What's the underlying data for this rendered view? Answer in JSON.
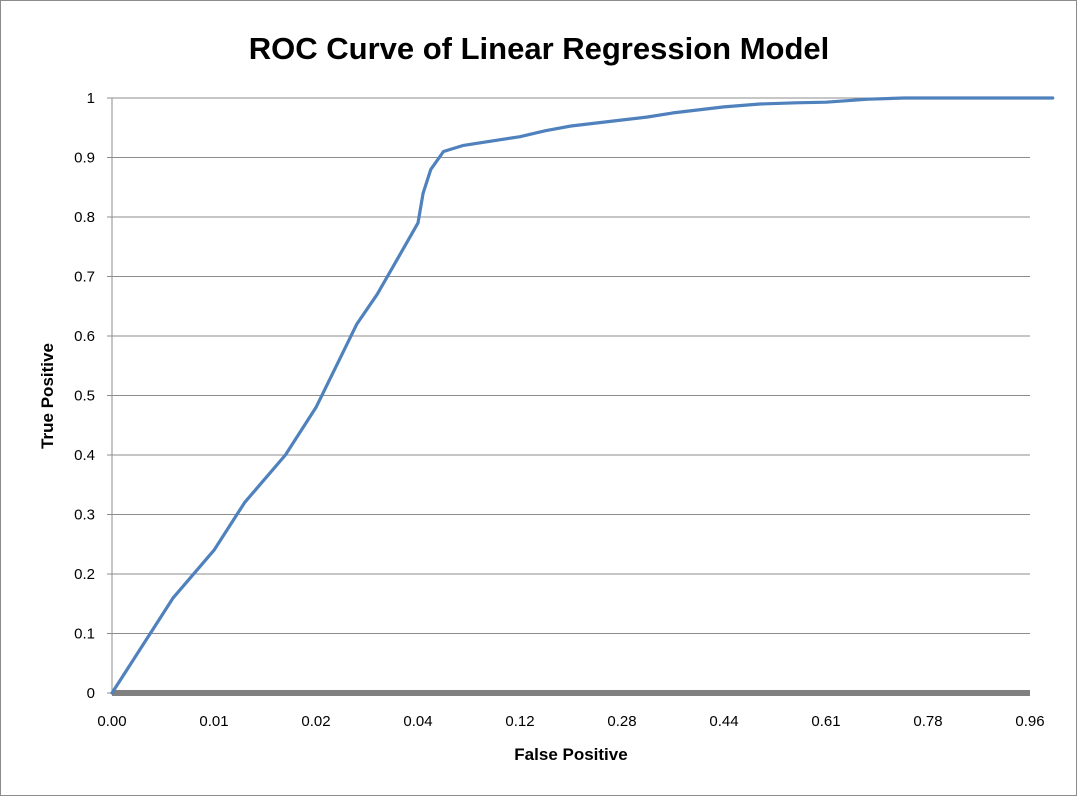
{
  "colors": {
    "line": "#4f81bd",
    "grid": "#8c8c8c",
    "baseline": "#808080",
    "axis": "#8c8c8c"
  },
  "chart_data": {
    "type": "line",
    "title": "ROC Curve of Linear Regression Model",
    "xlabel": "False Positive",
    "ylabel": "True Positive",
    "x_tick_labels": [
      "0.00",
      "0.01",
      "0.02",
      "0.04",
      "0.12",
      "0.28",
      "0.44",
      "0.61",
      "0.78",
      "0.96"
    ],
    "y_tick_labels": [
      "0",
      "0.1",
      "0.2",
      "0.3",
      "0.4",
      "0.5",
      "0.6",
      "0.7",
      "0.8",
      "0.9",
      "1"
    ],
    "ylim": [
      0,
      1
    ],
    "grid": true,
    "legend": "none",
    "x_axis_kind": "category",
    "series": [
      {
        "color": "#4f81bd",
        "x": [
          0.0,
          0.003,
          0.006,
          0.01,
          0.013,
          0.017,
          0.02,
          0.024,
          0.028,
          0.032,
          0.036,
          0.04,
          0.044,
          0.05,
          0.06,
          0.075,
          0.09,
          0.12,
          0.16,
          0.2,
          0.24,
          0.28,
          0.32,
          0.36,
          0.4,
          0.44,
          0.5,
          0.56,
          0.61,
          0.68,
          0.74,
          0.78,
          0.96,
          1.0
        ],
        "y": [
          0.0,
          0.08,
          0.16,
          0.24,
          0.32,
          0.4,
          0.48,
          0.55,
          0.62,
          0.67,
          0.73,
          0.79,
          0.84,
          0.88,
          0.91,
          0.92,
          0.925,
          0.935,
          0.945,
          0.953,
          0.958,
          0.963,
          0.968,
          0.975,
          0.98,
          0.985,
          0.99,
          0.992,
          0.993,
          0.998,
          1.0,
          1.0,
          1.0,
          1.0
        ]
      }
    ]
  }
}
